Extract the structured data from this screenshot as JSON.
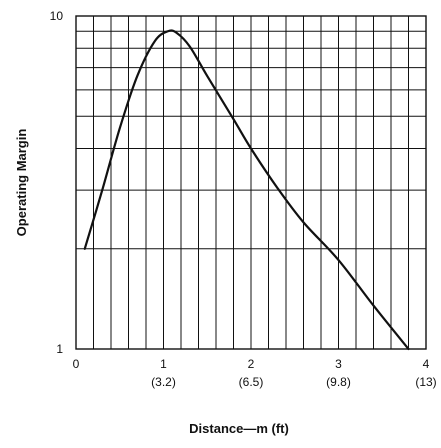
{
  "chart_data": {
    "type": "line",
    "title": "",
    "xlabel": "Distance—m (ft)",
    "ylabel": "Operating Margin",
    "xlim": [
      0,
      4
    ],
    "ylim": [
      1,
      10
    ],
    "y_scale": "log",
    "grid": true,
    "x_ticks": [
      {
        "value": 0,
        "label": "0",
        "sublabel": ""
      },
      {
        "value": 1,
        "label": "1",
        "sublabel": "(3.2)"
      },
      {
        "value": 2,
        "label": "2",
        "sublabel": "(6.5)"
      },
      {
        "value": 3,
        "label": "3",
        "sublabel": "(9.8)"
      },
      {
        "value": 4,
        "label": "4",
        "sublabel": "(13)"
      }
    ],
    "y_ticks": [
      {
        "value": 1,
        "label": "1"
      },
      {
        "value": 10,
        "label": "10"
      }
    ],
    "x_minor_step": 0.2,
    "y_minor_values": [
      2,
      3,
      4,
      5,
      6,
      7,
      8,
      9
    ],
    "series": [
      {
        "name": "",
        "color": "#111111",
        "x": [
          0.1,
          0.3,
          0.5,
          0.7,
          0.9,
          1.05,
          1.15,
          1.3,
          1.5,
          1.8,
          2.0,
          2.3,
          2.6,
          3.0,
          3.4,
          3.8
        ],
        "y": [
          2.0,
          3.0,
          4.6,
          6.6,
          8.4,
          9.0,
          8.9,
          8.1,
          6.6,
          4.9,
          4.0,
          3.05,
          2.4,
          1.85,
          1.35,
          1.0
        ]
      }
    ]
  }
}
